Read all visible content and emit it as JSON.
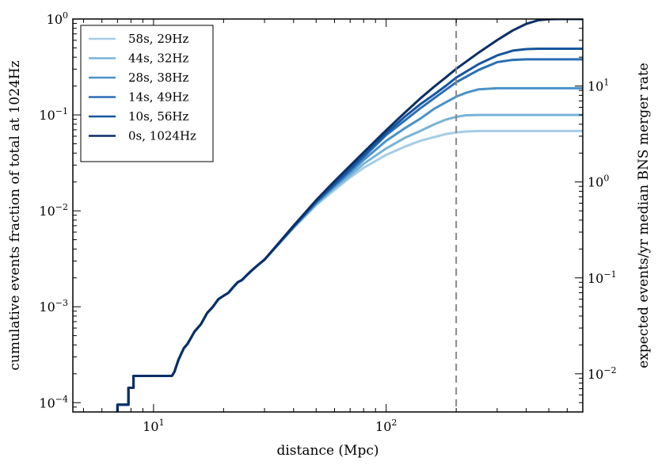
{
  "chart_data": {
    "type": "line",
    "xscale": "log",
    "yscale": "log",
    "xlim": [
      4.5,
      700
    ],
    "ylim": [
      8e-05,
      1.0
    ],
    "right_ylim": [
      0.004,
      50
    ],
    "xlabel": "distance (Mpc)",
    "ylabel": "cumulative events fraction of total at 1024Hz",
    "right_ylabel": "expected events/yr median BNS merger rate",
    "x_ticks": [
      {
        "value": 10,
        "base": "10",
        "exp": "1"
      },
      {
        "value": 100,
        "base": "10",
        "exp": "2"
      }
    ],
    "y_ticks": [
      {
        "value": 1.0,
        "base": "10",
        "exp": "0"
      },
      {
        "value": 0.1,
        "base": "10",
        "exp": "−1"
      },
      {
        "value": 0.01,
        "base": "10",
        "exp": "−2"
      },
      {
        "value": 0.001,
        "base": "10",
        "exp": "−3"
      },
      {
        "value": 0.0001,
        "base": "10",
        "exp": "−4"
      }
    ],
    "right_y_ticks": [
      {
        "value": 10,
        "base": "10",
        "exp": "1"
      },
      {
        "value": 1,
        "base": "10",
        "exp": "0"
      },
      {
        "value": 0.1,
        "base": "10",
        "exp": "−1"
      },
      {
        "value": 0.01,
        "base": "10",
        "exp": "−2"
      }
    ],
    "vline": {
      "x": 200,
      "style": "dashed",
      "color": "#888888"
    },
    "legend_position": "top-left",
    "shared_low_distance_curve": [
      [
        7,
        8e-05
      ],
      [
        7,
        9.52e-05
      ],
      [
        7.8,
        9.52e-05
      ],
      [
        7.8,
        0.000143
      ],
      [
        8.2,
        0.000143
      ],
      [
        8.2,
        0.00019
      ],
      [
        9,
        0.00019
      ],
      [
        10,
        0.00019
      ],
      [
        11,
        0.00019
      ],
      [
        12,
        0.00019
      ],
      [
        12.3,
        0.00021
      ],
      [
        12.8,
        0.00028
      ],
      [
        13.5,
        0.00037
      ],
      [
        14,
        0.00041
      ],
      [
        15,
        0.00055
      ],
      [
        16,
        0.00066
      ],
      [
        17,
        0.00086
      ],
      [
        18,
        0.001
      ],
      [
        19,
        0.0012
      ],
      [
        20,
        0.0013
      ],
      [
        21,
        0.0014
      ],
      [
        22,
        0.0016
      ],
      [
        23,
        0.0018
      ],
      [
        24,
        0.0019
      ],
      [
        25,
        0.0021
      ],
      [
        26,
        0.0023
      ],
      [
        27,
        0.0025
      ],
      [
        28,
        0.0027
      ],
      [
        30,
        0.0031
      ]
    ],
    "series": [
      {
        "name": "58s, 29Hz",
        "color": "#a6cde6",
        "plateau": 0.068,
        "knee": 200,
        "points": [
          [
            30,
            0.0031
          ],
          [
            40,
            0.0066
          ],
          [
            50,
            0.0115
          ],
          [
            60,
            0.0165
          ],
          [
            70,
            0.0223
          ],
          [
            80,
            0.0281
          ],
          [
            100,
            0.0383
          ],
          [
            120,
            0.0466
          ],
          [
            140,
            0.0536
          ],
          [
            160,
            0.0585
          ],
          [
            180,
            0.0631
          ],
          [
            200,
            0.0656
          ],
          [
            220,
            0.0672
          ],
          [
            250,
            0.068
          ],
          [
            300,
            0.068
          ],
          [
            400,
            0.068
          ],
          [
            500,
            0.068
          ],
          [
            700,
            0.068
          ]
        ]
      },
      {
        "name": "44s, 32Hz",
        "color": "#77b3d9",
        "plateau": 0.1,
        "knee": 220,
        "points": [
          [
            30,
            0.0031
          ],
          [
            40,
            0.0067
          ],
          [
            50,
            0.0117
          ],
          [
            60,
            0.0174
          ],
          [
            70,
            0.0234
          ],
          [
            80,
            0.0309
          ],
          [
            100,
            0.0447
          ],
          [
            120,
            0.0575
          ],
          [
            140,
            0.068
          ],
          [
            160,
            0.0793
          ],
          [
            180,
            0.0891
          ],
          [
            200,
            0.0955
          ],
          [
            220,
            0.0992
          ],
          [
            250,
            0.1
          ],
          [
            300,
            0.1
          ],
          [
            400,
            0.1
          ],
          [
            500,
            0.1
          ],
          [
            700,
            0.1
          ]
        ]
      },
      {
        "name": "28s, 38Hz",
        "color": "#4a92c8",
        "plateau": 0.19,
        "knee": 260,
        "points": [
          [
            30,
            0.0031
          ],
          [
            40,
            0.0068
          ],
          [
            50,
            0.012
          ],
          [
            60,
            0.0181
          ],
          [
            70,
            0.0251
          ],
          [
            80,
            0.0339
          ],
          [
            100,
            0.0537
          ],
          [
            120,
            0.0724
          ],
          [
            140,
            0.0912
          ],
          [
            160,
            0.115
          ],
          [
            180,
            0.135
          ],
          [
            200,
            0.155
          ],
          [
            220,
            0.17
          ],
          [
            250,
            0.185
          ],
          [
            300,
            0.19
          ],
          [
            400,
            0.19
          ],
          [
            500,
            0.19
          ],
          [
            700,
            0.19
          ]
        ]
      },
      {
        "name": "14s, 49Hz",
        "color": "#2b6fb5",
        "plateau": 0.38,
        "knee": 360,
        "points": [
          [
            30,
            0.0031
          ],
          [
            40,
            0.0068
          ],
          [
            50,
            0.0123
          ],
          [
            60,
            0.0186
          ],
          [
            70,
            0.0263
          ],
          [
            80,
            0.0363
          ],
          [
            100,
            0.0617
          ],
          [
            120,
            0.0871
          ],
          [
            140,
            0.117
          ],
          [
            160,
            0.148
          ],
          [
            180,
            0.182
          ],
          [
            200,
            0.219
          ],
          [
            250,
            0.295
          ],
          [
            300,
            0.355
          ],
          [
            350,
            0.375
          ],
          [
            400,
            0.38
          ],
          [
            500,
            0.38
          ],
          [
            700,
            0.38
          ]
        ]
      },
      {
        "name": "10s, 56Hz",
        "color": "#16559e",
        "plateau": 0.49,
        "knee": 430,
        "points": [
          [
            30,
            0.0031
          ],
          [
            40,
            0.0069
          ],
          [
            50,
            0.0126
          ],
          [
            60,
            0.0191
          ],
          [
            70,
            0.0275
          ],
          [
            80,
            0.038
          ],
          [
            100,
            0.0646
          ],
          [
            120,
            0.0955
          ],
          [
            140,
            0.129
          ],
          [
            160,
            0.162
          ],
          [
            180,
            0.2
          ],
          [
            200,
            0.245
          ],
          [
            250,
            0.339
          ],
          [
            300,
            0.417
          ],
          [
            350,
            0.468
          ],
          [
            400,
            0.485
          ],
          [
            450,
            0.49
          ],
          [
            700,
            0.49
          ]
        ]
      },
      {
        "name": "0s, 1024Hz",
        "color": "#0b2f66",
        "plateau": 1.0,
        "knee": 520,
        "points": [
          [
            30,
            0.0032
          ],
          [
            40,
            0.007
          ],
          [
            50,
            0.0129
          ],
          [
            60,
            0.0204
          ],
          [
            70,
            0.0295
          ],
          [
            80,
            0.0407
          ],
          [
            100,
            0.0692
          ],
          [
            120,
            0.105
          ],
          [
            140,
            0.148
          ],
          [
            160,
            0.195
          ],
          [
            180,
            0.245
          ],
          [
            200,
            0.302
          ],
          [
            250,
            0.447
          ],
          [
            300,
            0.603
          ],
          [
            350,
            0.76
          ],
          [
            400,
            0.89
          ],
          [
            450,
            0.97
          ],
          [
            500,
            0.995
          ],
          [
            550,
            1.0
          ],
          [
            700,
            1.0
          ]
        ]
      }
    ]
  }
}
